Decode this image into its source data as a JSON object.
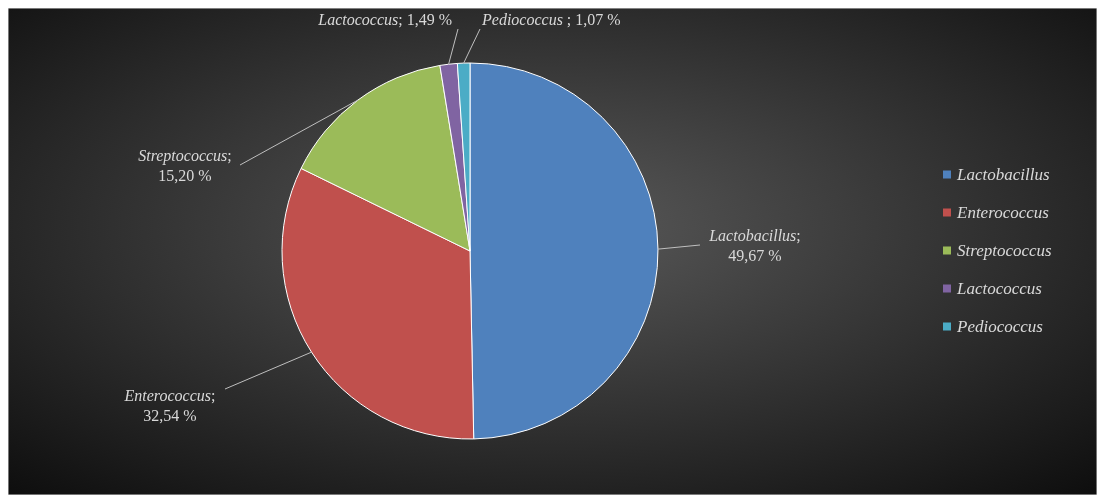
{
  "chart_data": {
    "type": "pie",
    "categories": [
      "Lactobacillus",
      "Enterococcus",
      "Streptococcus",
      "Lactococcus",
      "Pediococcus"
    ],
    "values": [
      49.67,
      32.54,
      15.2,
      1.49,
      1.07
    ],
    "value_labels": [
      "; 49,67 %",
      "; 32,54 %",
      "; 15,20 %",
      "; 1,49 %",
      " ; 1,07 %"
    ],
    "colors": [
      "#4f81bd",
      "#c0504d",
      "#9bbb59",
      "#8064a2",
      "#4bacc6"
    ],
    "legend": "right"
  }
}
